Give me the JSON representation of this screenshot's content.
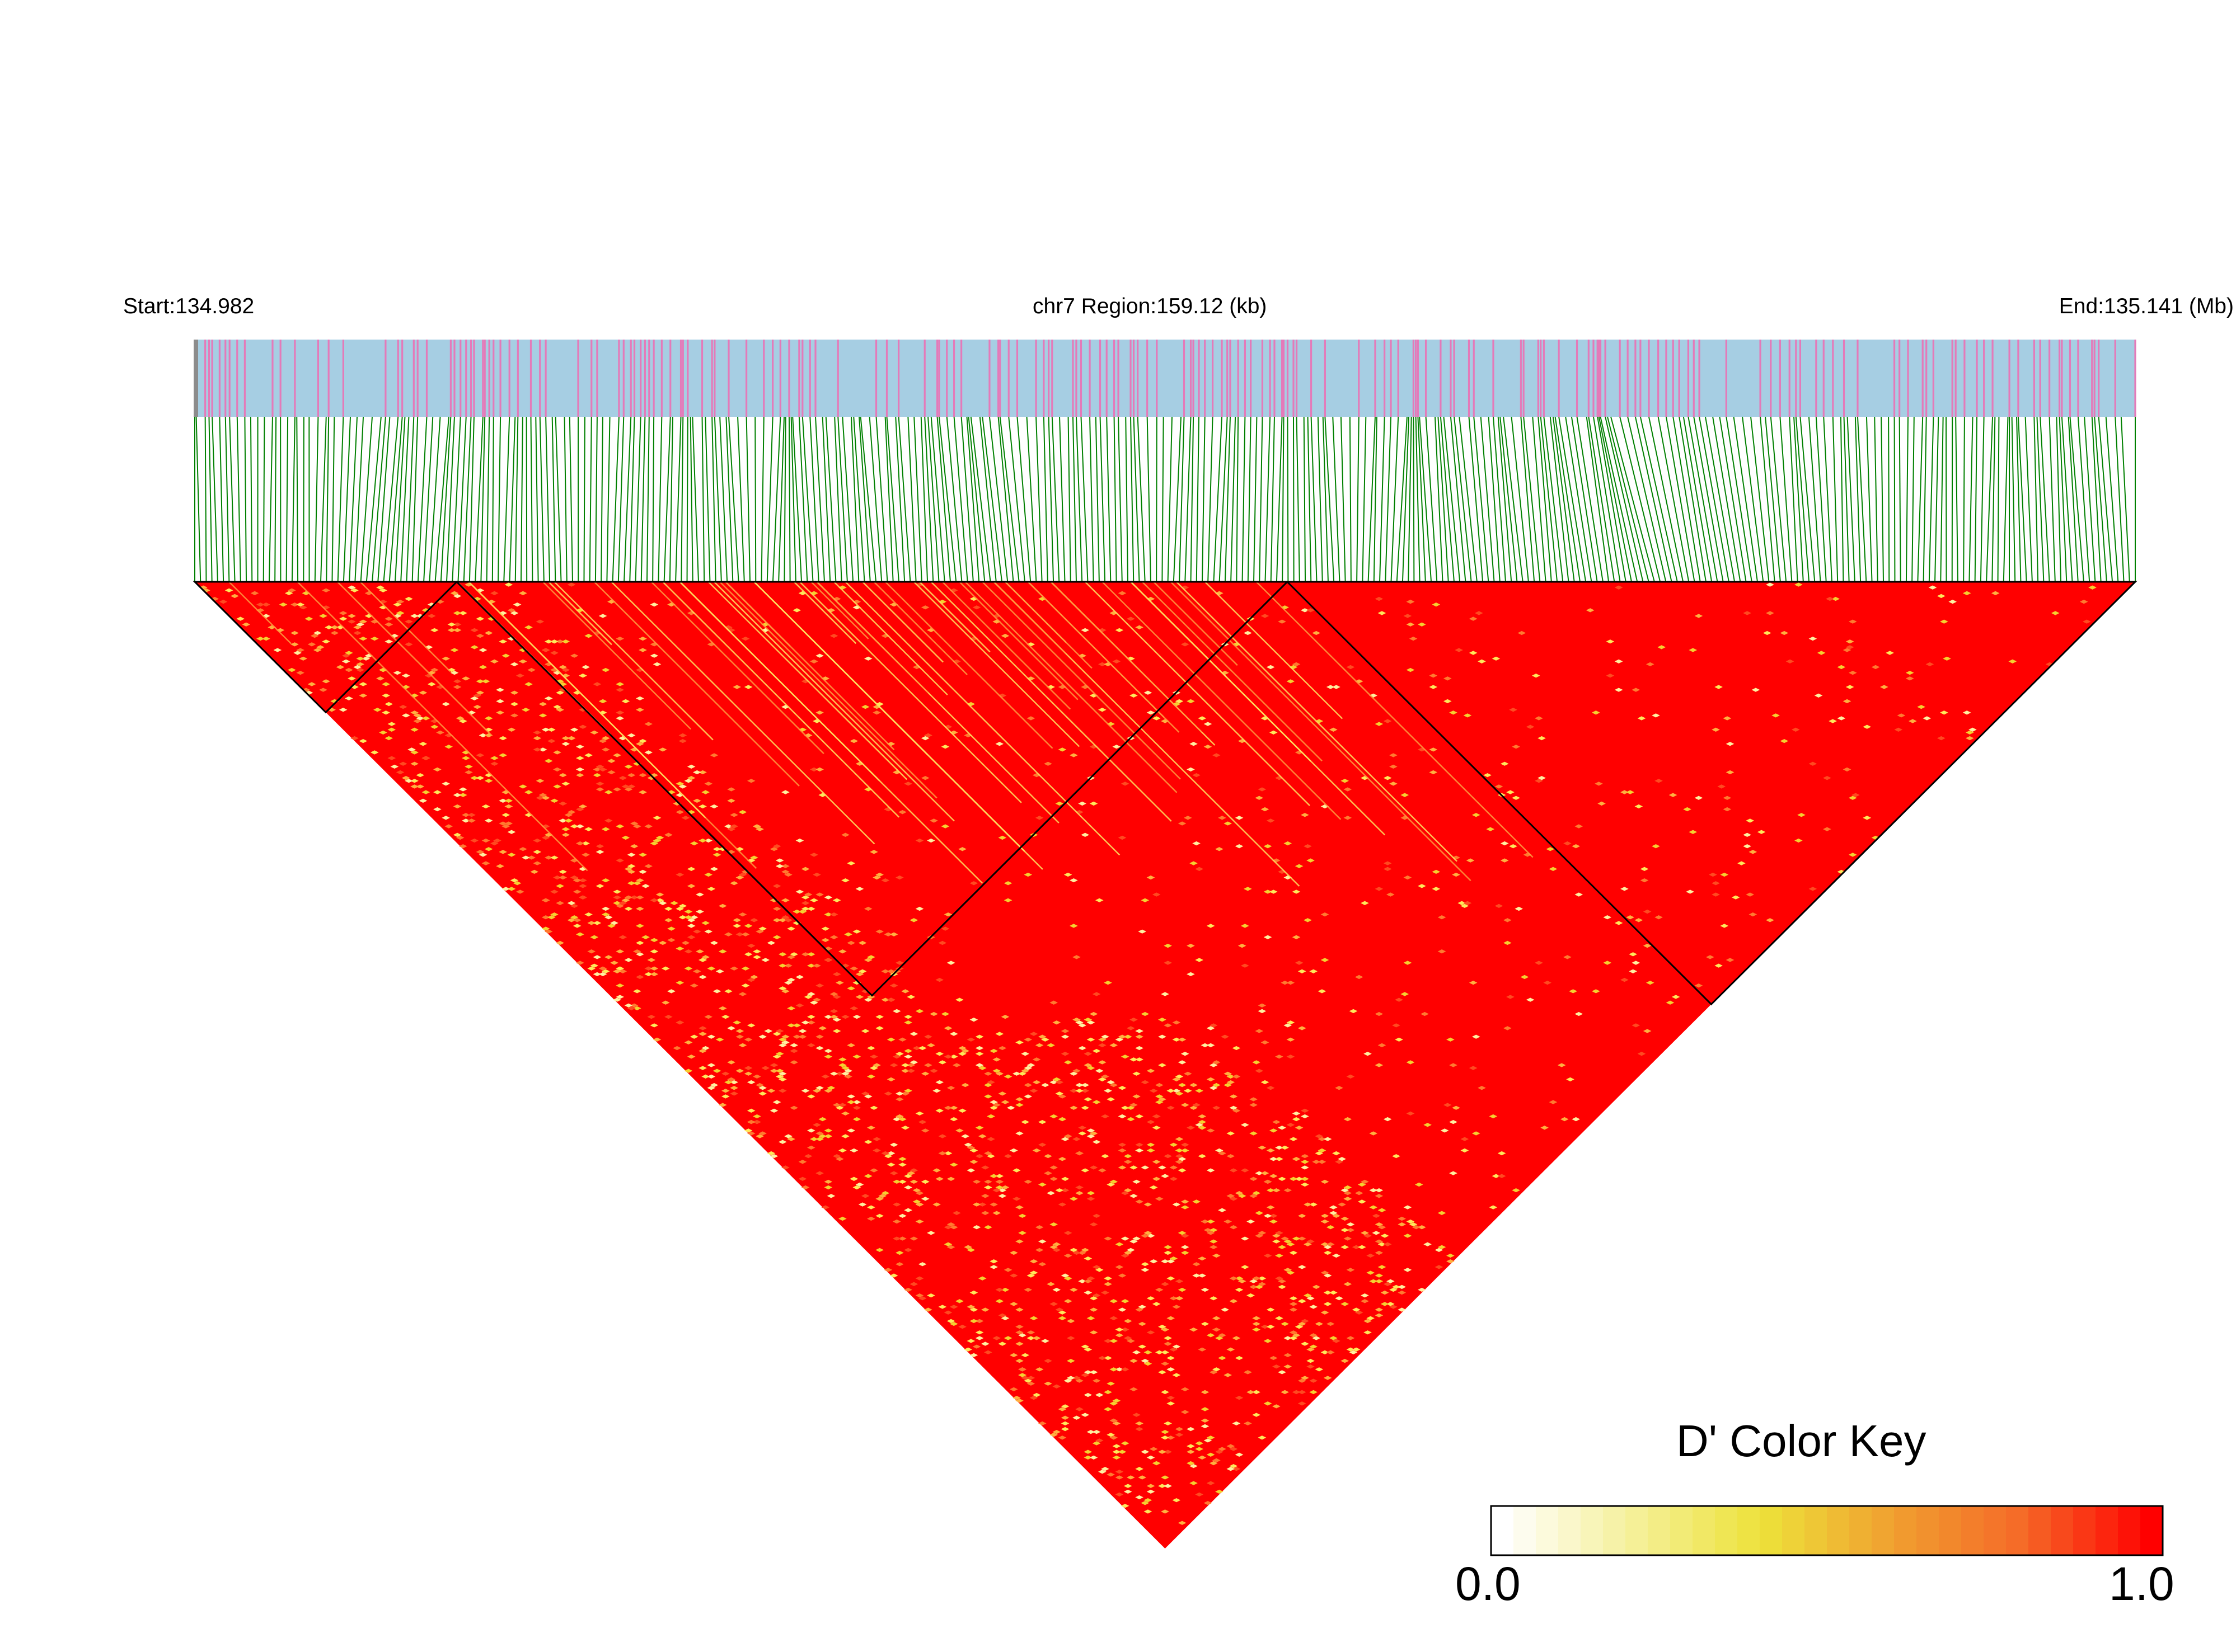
{
  "header": {
    "start": "Start:134.982",
    "region": "chr7 Region:159.12 (kb)",
    "end": "End:135.141 (Mb)"
  },
  "color_key": {
    "title": "D' Color Key",
    "min_label": "0.0",
    "max_label": "1.0"
  },
  "colors": {
    "snp_track_bg": "#a6cee3",
    "snp_mark": "#e47ab9",
    "connector_line": "#008000",
    "ld_high": "#ff0000",
    "ld_mid": "#ee2222",
    "ld_low": "#f0e640",
    "block_outline": "#000000"
  },
  "chart_data": {
    "type": "heatmap",
    "description_kind": "LD heatmap (D')",
    "chromosome": "chr7",
    "region_start_mb": 134.982,
    "region_end_mb": 135.141,
    "region_size_kb": 159.12,
    "value_range": [
      0.0,
      1.0
    ],
    "colormap": [
      "#ffffff",
      "#f5f09a",
      "#ede23a",
      "#f0a030",
      "#f56a28",
      "#ff0000"
    ],
    "snp_count_approx": 340,
    "ld_blocks": [
      {
        "snp_start_fraction": 0.0,
        "snp_end_fraction": 0.135
      },
      {
        "snp_start_fraction": 0.135,
        "snp_end_fraction": 0.563
      },
      {
        "snp_start_fraction": 0.563,
        "snp_end_fraction": 1.0
      }
    ],
    "legend_placement": "bottom-right"
  }
}
